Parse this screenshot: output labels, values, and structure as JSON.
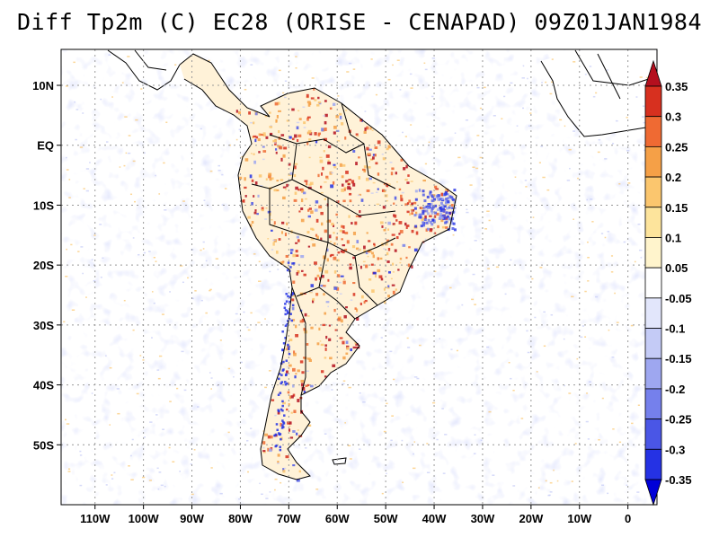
{
  "title": "Diff Tp2m (C) EC28 (ORISE - CENAPAD) 09Z01JAN1984",
  "map": {
    "lon_range": [
      -117,
      6
    ],
    "lat_range": [
      -60,
      16
    ],
    "lon_ticks": [
      {
        "lon": -110,
        "label": "110W"
      },
      {
        "lon": -100,
        "label": "100W"
      },
      {
        "lon": -90,
        "label": "90W"
      },
      {
        "lon": -80,
        "label": "80W"
      },
      {
        "lon": -70,
        "label": "70W"
      },
      {
        "lon": -60,
        "label": "60W"
      },
      {
        "lon": -50,
        "label": "50W"
      },
      {
        "lon": -40,
        "label": "40W"
      },
      {
        "lon": -30,
        "label": "30W"
      },
      {
        "lon": -20,
        "label": "20W"
      },
      {
        "lon": -10,
        "label": "10W"
      },
      {
        "lon": 0,
        "label": "0"
      }
    ],
    "lat_ticks": [
      {
        "lat": 10,
        "label": "10N"
      },
      {
        "lat": 0,
        "label": "EQ"
      },
      {
        "lat": -10,
        "label": "10S"
      },
      {
        "lat": -20,
        "label": "20S"
      },
      {
        "lat": -30,
        "label": "30S"
      },
      {
        "lat": -40,
        "label": "40S"
      },
      {
        "lat": -50,
        "label": "50S"
      }
    ],
    "grid": "dotted"
  },
  "colorbar": {
    "labels": [
      "0.35",
      "0.3",
      "0.25",
      "0.2",
      "0.15",
      "0.1",
      "0.05",
      "-0.05",
      "-0.1",
      "-0.15",
      "-0.2",
      "-0.25",
      "-0.3",
      "-0.35"
    ],
    "colors": [
      "#b40f1e",
      "#d7301f",
      "#ef6a33",
      "#f5a047",
      "#fbc66e",
      "#fde49c",
      "#fff4cc",
      "#ffffff",
      "#e2e6fb",
      "#c4cbf6",
      "#9ea7f0",
      "#7580ec",
      "#4a56e6",
      "#2532e4",
      "#0000d8"
    ]
  }
}
